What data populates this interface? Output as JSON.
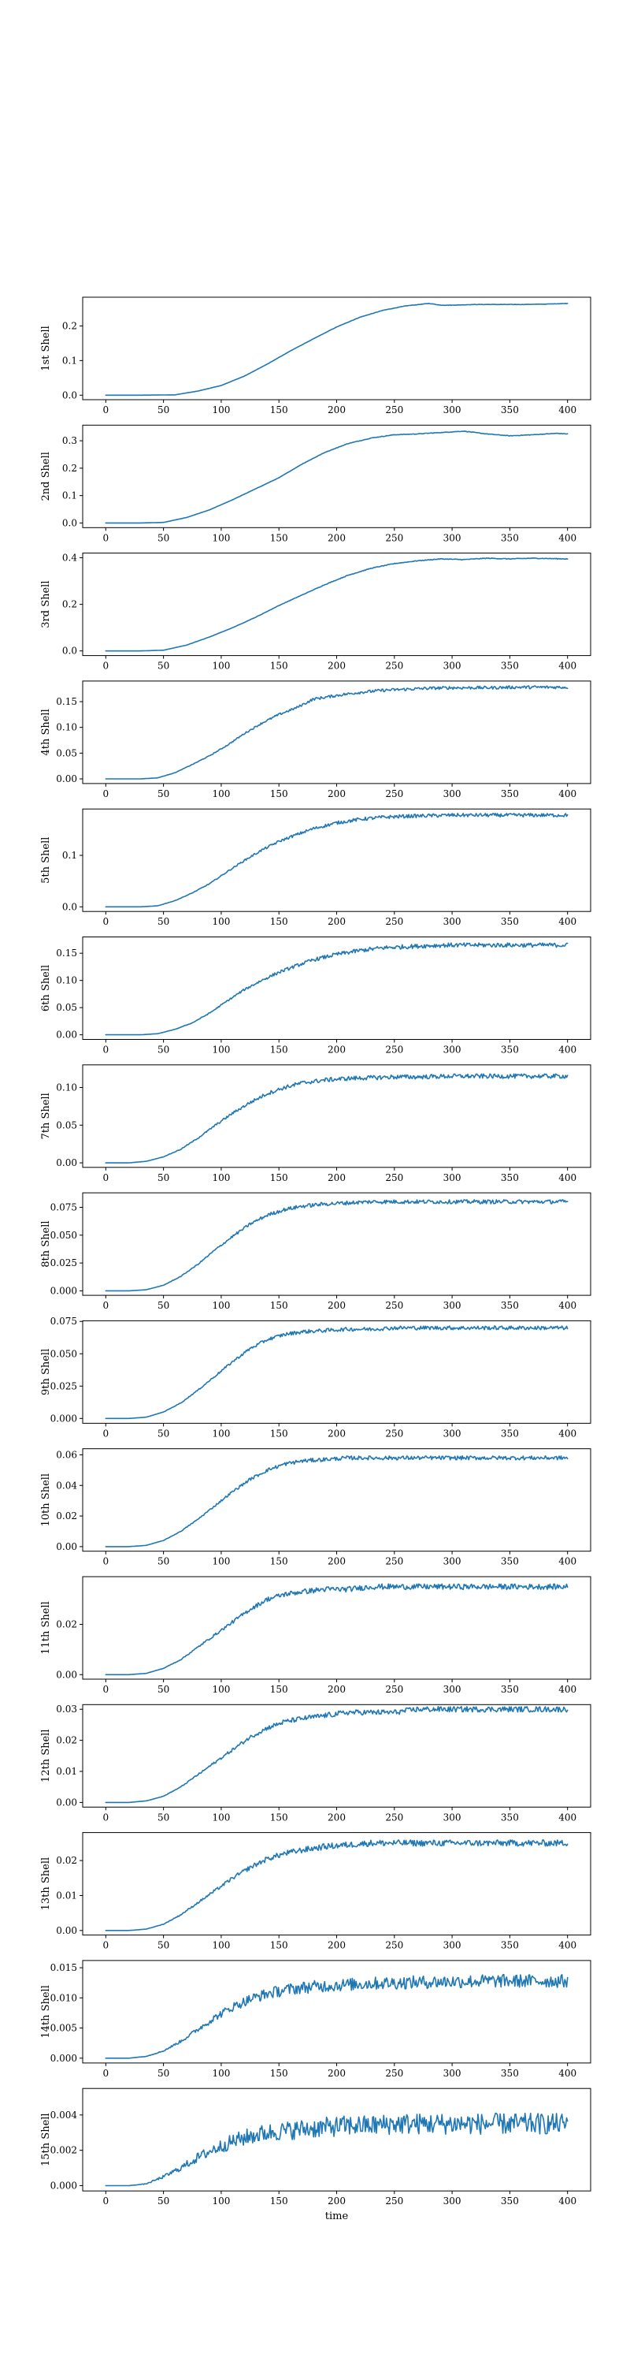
{
  "colors": {
    "series": "#1f77b4",
    "axes": "#000000",
    "background": "#ffffff"
  },
  "chart_data": [
    {
      "type": "line",
      "ylabel": "1st Shell",
      "xlabel": "",
      "xlim": [
        -20,
        420
      ],
      "ylim": [
        -0.013,
        0.283
      ],
      "xticks": [
        0,
        50,
        100,
        150,
        200,
        250,
        300,
        350,
        400
      ],
      "yticks": [
        0.0,
        0.1,
        0.2
      ],
      "ytick_labels": [
        "0.0",
        "0.1",
        "0.2"
      ],
      "x": [
        0,
        30,
        60,
        80,
        100,
        120,
        140,
        160,
        180,
        200,
        220,
        240,
        260,
        280,
        290,
        300,
        320,
        340,
        360,
        380,
        400
      ],
      "y": [
        0,
        0,
        0.001,
        0.012,
        0.028,
        0.055,
        0.09,
        0.128,
        0.163,
        0.197,
        0.225,
        0.245,
        0.258,
        0.265,
        0.26,
        0.26,
        0.262,
        0.262,
        0.262,
        0.263,
        0.265
      ],
      "noise": 0.0005
    },
    {
      "type": "line",
      "ylabel": "2nd Shell",
      "xlabel": "",
      "xlim": [
        -20,
        420
      ],
      "ylim": [
        -0.017,
        0.357
      ],
      "xticks": [
        0,
        50,
        100,
        150,
        200,
        250,
        300,
        350,
        400
      ],
      "yticks": [
        0.0,
        0.1,
        0.2,
        0.3
      ],
      "ytick_labels": [
        "0.0",
        "0.1",
        "0.2",
        "0.3"
      ],
      "x": [
        0,
        30,
        50,
        70,
        90,
        110,
        130,
        150,
        170,
        190,
        210,
        230,
        250,
        270,
        290,
        310,
        330,
        350,
        370,
        390,
        400
      ],
      "y": [
        0,
        0,
        0.002,
        0.02,
        0.048,
        0.085,
        0.125,
        0.165,
        0.215,
        0.258,
        0.29,
        0.31,
        0.322,
        0.325,
        0.33,
        0.335,
        0.325,
        0.318,
        0.322,
        0.327,
        0.325
      ],
      "noise": 0.001
    },
    {
      "type": "line",
      "ylabel": "3rd Shell",
      "xlabel": "",
      "xlim": [
        -20,
        420
      ],
      "ylim": [
        -0.02,
        0.42
      ],
      "xticks": [
        0,
        50,
        100,
        150,
        200,
        250,
        300,
        350,
        400
      ],
      "yticks": [
        0.0,
        0.2,
        0.4
      ],
      "ytick_labels": [
        "0.0",
        "0.2",
        "0.4"
      ],
      "x": [
        0,
        30,
        50,
        70,
        90,
        110,
        130,
        150,
        170,
        190,
        210,
        230,
        250,
        270,
        290,
        310,
        330,
        350,
        370,
        390,
        400
      ],
      "y": [
        0,
        0,
        0.003,
        0.025,
        0.06,
        0.1,
        0.145,
        0.195,
        0.24,
        0.285,
        0.325,
        0.355,
        0.375,
        0.387,
        0.395,
        0.392,
        0.398,
        0.395,
        0.398,
        0.396,
        0.395
      ],
      "noise": 0.0015
    },
    {
      "type": "line",
      "ylabel": "4th Shell",
      "xlabel": "",
      "xlim": [
        -20,
        420
      ],
      "ylim": [
        -0.009,
        0.19
      ],
      "xticks": [
        0,
        50,
        100,
        150,
        200,
        250,
        300,
        350,
        400
      ],
      "yticks": [
        0.0,
        0.05,
        0.1,
        0.15
      ],
      "ytick_labels": [
        "0.00",
        "0.05",
        "0.10",
        "0.15"
      ],
      "x": [
        0,
        30,
        45,
        60,
        75,
        90,
        105,
        120,
        135,
        150,
        165,
        180,
        200,
        220,
        240,
        260,
        280,
        300,
        330,
        360,
        400
      ],
      "y": [
        0,
        0,
        0.002,
        0.012,
        0.028,
        0.045,
        0.065,
        0.088,
        0.108,
        0.125,
        0.138,
        0.155,
        0.162,
        0.168,
        0.172,
        0.174,
        0.176,
        0.177,
        0.177,
        0.178,
        0.178
      ],
      "noise": 0.003
    },
    {
      "type": "line",
      "ylabel": "5th Shell",
      "xlabel": "",
      "xlim": [
        -20,
        420
      ],
      "ylim": [
        -0.009,
        0.19
      ],
      "xticks": [
        0,
        50,
        100,
        150,
        200,
        250,
        300,
        350,
        400
      ],
      "yticks": [
        0.0,
        0.1
      ],
      "ytick_labels": [
        "0.0",
        "0.1"
      ],
      "x": [
        0,
        30,
        45,
        60,
        75,
        90,
        105,
        120,
        135,
        150,
        165,
        180,
        200,
        220,
        240,
        260,
        280,
        300,
        330,
        360,
        400
      ],
      "y": [
        0,
        0,
        0.002,
        0.012,
        0.027,
        0.045,
        0.068,
        0.09,
        0.11,
        0.127,
        0.14,
        0.152,
        0.163,
        0.17,
        0.174,
        0.176,
        0.177,
        0.178,
        0.178,
        0.178,
        0.178
      ],
      "noise": 0.0035
    },
    {
      "type": "line",
      "ylabel": "6th Shell",
      "xlabel": "",
      "xlim": [
        -20,
        420
      ],
      "ylim": [
        -0.0085,
        0.18
      ],
      "xticks": [
        0,
        50,
        100,
        150,
        200,
        250,
        300,
        350,
        400
      ],
      "yticks": [
        0.0,
        0.05,
        0.1,
        0.15
      ],
      "ytick_labels": [
        "0.00",
        "0.05",
        "0.10",
        "0.15"
      ],
      "x": [
        0,
        30,
        45,
        60,
        75,
        90,
        105,
        120,
        135,
        150,
        165,
        180,
        200,
        220,
        240,
        260,
        280,
        300,
        330,
        360,
        400
      ],
      "y": [
        0,
        0,
        0.002,
        0.01,
        0.022,
        0.04,
        0.062,
        0.083,
        0.1,
        0.115,
        0.127,
        0.138,
        0.148,
        0.155,
        0.16,
        0.162,
        0.164,
        0.165,
        0.165,
        0.165,
        0.165
      ],
      "noise": 0.004
    },
    {
      "type": "line",
      "ylabel": "7th Shell",
      "xlabel": "",
      "xlim": [
        -20,
        420
      ],
      "ylim": [
        -0.006,
        0.13
      ],
      "xticks": [
        0,
        50,
        100,
        150,
        200,
        250,
        300,
        350,
        400
      ],
      "yticks": [
        0.0,
        0.05,
        0.1
      ],
      "ytick_labels": [
        "0.00",
        "0.05",
        "0.10"
      ],
      "x": [
        0,
        20,
        35,
        50,
        65,
        80,
        95,
        110,
        125,
        140,
        155,
        170,
        190,
        210,
        230,
        250,
        270,
        300,
        330,
        360,
        400
      ],
      "y": [
        0,
        0,
        0.002,
        0.008,
        0.018,
        0.033,
        0.05,
        0.066,
        0.08,
        0.092,
        0.1,
        0.106,
        0.11,
        0.112,
        0.113,
        0.114,
        0.114,
        0.115,
        0.115,
        0.115,
        0.115
      ],
      "noise": 0.003
    },
    {
      "type": "line",
      "ylabel": "8th Shell",
      "xlabel": "",
      "xlim": [
        -20,
        420
      ],
      "ylim": [
        -0.004,
        0.088
      ],
      "xticks": [
        0,
        50,
        100,
        150,
        200,
        250,
        300,
        350,
        400
      ],
      "yticks": [
        0.0,
        0.025,
        0.05,
        0.075
      ],
      "ytick_labels": [
        "0.000",
        "0.025",
        "0.050",
        "0.075"
      ],
      "x": [
        0,
        20,
        35,
        50,
        65,
        80,
        95,
        110,
        125,
        140,
        155,
        170,
        190,
        210,
        230,
        250,
        270,
        300,
        330,
        360,
        400
      ],
      "y": [
        0,
        0,
        0.001,
        0.005,
        0.013,
        0.024,
        0.037,
        0.049,
        0.06,
        0.068,
        0.073,
        0.076,
        0.078,
        0.079,
        0.08,
        0.08,
        0.08,
        0.08,
        0.08,
        0.08,
        0.08
      ],
      "noise": 0.0018
    },
    {
      "type": "line",
      "ylabel": "9th Shell",
      "xlabel": "",
      "xlim": [
        -20,
        420
      ],
      "ylim": [
        -0.0037,
        0.0755
      ],
      "xticks": [
        0,
        50,
        100,
        150,
        200,
        250,
        300,
        350,
        400
      ],
      "yticks": [
        0.0,
        0.025,
        0.05,
        0.075
      ],
      "ytick_labels": [
        "0.000",
        "0.025",
        "0.050",
        "0.075"
      ],
      "x": [
        0,
        20,
        35,
        50,
        65,
        80,
        95,
        110,
        125,
        140,
        155,
        170,
        190,
        210,
        230,
        250,
        270,
        300,
        330,
        360,
        400
      ],
      "y": [
        0,
        0,
        0.001,
        0.005,
        0.012,
        0.022,
        0.033,
        0.044,
        0.054,
        0.061,
        0.065,
        0.067,
        0.068,
        0.069,
        0.069,
        0.07,
        0.07,
        0.07,
        0.07,
        0.07,
        0.07
      ],
      "noise": 0.0015
    },
    {
      "type": "line",
      "ylabel": "10th Shell",
      "xlabel": "",
      "xlim": [
        -20,
        420
      ],
      "ylim": [
        -0.003,
        0.064
      ],
      "xticks": [
        0,
        50,
        100,
        150,
        200,
        250,
        300,
        350,
        400
      ],
      "yticks": [
        0.0,
        0.02,
        0.04,
        0.06
      ],
      "ytick_labels": [
        "0.00",
        "0.02",
        "0.04",
        "0.06"
      ],
      "x": [
        0,
        20,
        35,
        50,
        65,
        80,
        95,
        110,
        125,
        140,
        155,
        170,
        190,
        210,
        230,
        250,
        270,
        300,
        330,
        360,
        400
      ],
      "y": [
        0,
        0,
        0.0008,
        0.004,
        0.01,
        0.018,
        0.027,
        0.036,
        0.044,
        0.05,
        0.054,
        0.056,
        0.057,
        0.058,
        0.058,
        0.058,
        0.058,
        0.058,
        0.058,
        0.058,
        0.058
      ],
      "noise": 0.0013
    },
    {
      "type": "line",
      "ylabel": "11th Shell",
      "xlabel": "",
      "xlim": [
        -20,
        420
      ],
      "ylim": [
        -0.0018,
        0.039
      ],
      "xticks": [
        0,
        50,
        100,
        150,
        200,
        250,
        300,
        350,
        400
      ],
      "yticks": [
        0.0,
        0.02
      ],
      "ytick_labels": [
        "0.00",
        "0.02"
      ],
      "x": [
        0,
        20,
        35,
        50,
        65,
        80,
        95,
        110,
        125,
        140,
        155,
        170,
        190,
        210,
        230,
        250,
        270,
        300,
        330,
        360,
        400
      ],
      "y": [
        0,
        0,
        0.0005,
        0.0025,
        0.006,
        0.011,
        0.016,
        0.021,
        0.026,
        0.03,
        0.032,
        0.033,
        0.034,
        0.034,
        0.035,
        0.035,
        0.035,
        0.035,
        0.035,
        0.035,
        0.035
      ],
      "noise": 0.0011
    },
    {
      "type": "line",
      "ylabel": "12th Shell",
      "xlabel": "",
      "xlim": [
        -20,
        420
      ],
      "ylim": [
        -0.0015,
        0.0315
      ],
      "xticks": [
        0,
        50,
        100,
        150,
        200,
        250,
        300,
        350,
        400
      ],
      "yticks": [
        0.0,
        0.01,
        0.02,
        0.03
      ],
      "ytick_labels": [
        "0.00",
        "0.01",
        "0.02",
        "0.03"
      ],
      "x": [
        0,
        20,
        35,
        50,
        65,
        80,
        95,
        110,
        125,
        140,
        155,
        170,
        190,
        210,
        230,
        250,
        270,
        300,
        330,
        360,
        400
      ],
      "y": [
        0,
        0,
        0.0005,
        0.002,
        0.005,
        0.009,
        0.013,
        0.017,
        0.021,
        0.024,
        0.026,
        0.027,
        0.028,
        0.029,
        0.029,
        0.029,
        0.03,
        0.03,
        0.03,
        0.03,
        0.03
      ],
      "noise": 0.0009
    },
    {
      "type": "line",
      "ylabel": "13th Shell",
      "xlabel": "",
      "xlim": [
        -20,
        420
      ],
      "ylim": [
        -0.0013,
        0.028
      ],
      "xticks": [
        0,
        50,
        100,
        150,
        200,
        250,
        300,
        350,
        400
      ],
      "yticks": [
        0.0,
        0.01,
        0.02
      ],
      "ytick_labels": [
        "0.00",
        "0.01",
        "0.02"
      ],
      "x": [
        0,
        20,
        35,
        50,
        65,
        80,
        95,
        110,
        125,
        140,
        155,
        170,
        190,
        210,
        230,
        250,
        270,
        300,
        330,
        360,
        400
      ],
      "y": [
        0,
        0,
        0.0004,
        0.0018,
        0.0045,
        0.008,
        0.0115,
        0.015,
        0.018,
        0.0205,
        0.022,
        0.023,
        0.024,
        0.0245,
        0.025,
        0.025,
        0.025,
        0.025,
        0.025,
        0.025,
        0.025
      ],
      "noise": 0.0009
    },
    {
      "type": "line",
      "ylabel": "14th Shell",
      "xlabel": "",
      "xlim": [
        -20,
        420
      ],
      "ylim": [
        -0.0008,
        0.0162
      ],
      "xticks": [
        0,
        50,
        100,
        150,
        200,
        250,
        300,
        350,
        400
      ],
      "yticks": [
        0.0,
        0.005,
        0.01,
        0.015
      ],
      "ytick_labels": [
        "0.000",
        "0.005",
        "0.010",
        "0.015"
      ],
      "x": [
        0,
        20,
        35,
        50,
        65,
        80,
        95,
        110,
        125,
        140,
        155,
        170,
        190,
        210,
        230,
        250,
        270,
        300,
        330,
        360,
        400
      ],
      "y": [
        0,
        0,
        0.0003,
        0.0012,
        0.0028,
        0.0048,
        0.0068,
        0.0085,
        0.0098,
        0.0107,
        0.0113,
        0.0117,
        0.012,
        0.0122,
        0.0124,
        0.0125,
        0.0126,
        0.0127,
        0.0128,
        0.0128,
        0.0128
      ],
      "noise": 0.0011
    },
    {
      "type": "line",
      "ylabel": "15th Shell",
      "xlabel": "time",
      "xlim": [
        -20,
        420
      ],
      "ylim": [
        -0.0003,
        0.0055
      ],
      "xticks": [
        0,
        50,
        100,
        150,
        200,
        250,
        300,
        350,
        400
      ],
      "yticks": [
        0.0,
        0.002,
        0.004
      ],
      "ytick_labels": [
        "0.000",
        "0.002",
        "0.004"
      ],
      "x": [
        0,
        20,
        35,
        50,
        65,
        80,
        95,
        110,
        125,
        140,
        155,
        170,
        190,
        210,
        230,
        250,
        270,
        300,
        330,
        360,
        400
      ],
      "y": [
        0,
        0,
        0.0001,
        0.0005,
        0.001,
        0.0016,
        0.0021,
        0.0025,
        0.0028,
        0.003,
        0.0031,
        0.0032,
        0.0033,
        0.0034,
        0.0034,
        0.0035,
        0.0035,
        0.0035,
        0.0035,
        0.0035,
        0.0035
      ],
      "noise": 0.0006
    }
  ]
}
